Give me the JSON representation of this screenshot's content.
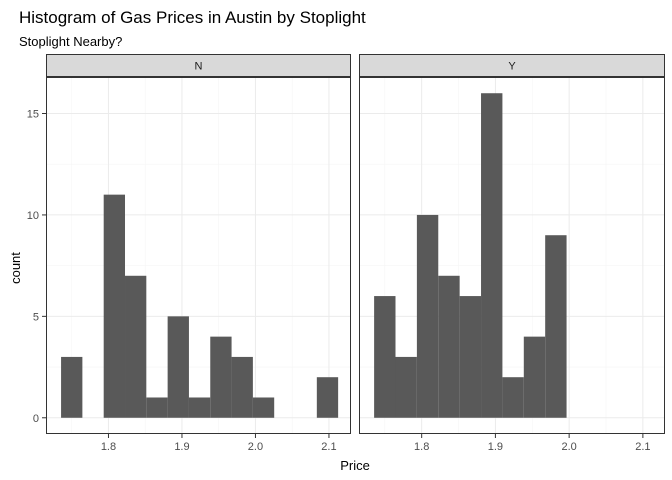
{
  "chart_data": {
    "type": "bar",
    "title": "Histogram of Gas Prices in Austin by Stoplight",
    "subtitle": "Stoplight Nearby?",
    "xlabel": "Price",
    "ylabel": "count",
    "xlim": [
      1.715,
      2.13
    ],
    "ylim": [
      -0.8,
      16.8
    ],
    "x_ticks": [
      1.8,
      1.9,
      2.0,
      2.1
    ],
    "y_ticks": [
      0,
      5,
      10,
      15
    ],
    "bin_width": 0.029,
    "grid": true,
    "facets": [
      {
        "name": "N",
        "bins": [
          {
            "x": 1.75,
            "count": 3
          },
          {
            "x": 1.808,
            "count": 11
          },
          {
            "x": 1.837,
            "count": 7
          },
          {
            "x": 1.866,
            "count": 1
          },
          {
            "x": 1.895,
            "count": 5
          },
          {
            "x": 1.924,
            "count": 1
          },
          {
            "x": 1.953,
            "count": 4
          },
          {
            "x": 1.982,
            "count": 3
          },
          {
            "x": 2.011,
            "count": 1
          },
          {
            "x": 2.098,
            "count": 2
          }
        ]
      },
      {
        "name": "Y",
        "bins": [
          {
            "x": 1.75,
            "count": 6
          },
          {
            "x": 1.779,
            "count": 3
          },
          {
            "x": 1.808,
            "count": 10
          },
          {
            "x": 1.837,
            "count": 7
          },
          {
            "x": 1.866,
            "count": 6
          },
          {
            "x": 1.895,
            "count": 16
          },
          {
            "x": 1.924,
            "count": 2
          },
          {
            "x": 1.953,
            "count": 4
          },
          {
            "x": 1.982,
            "count": 9
          }
        ]
      }
    ],
    "colors": {
      "bar": "#595959",
      "panel_border": "#333333",
      "strip_fill": "#d9d9d9",
      "grid_major": "#ebebeb",
      "grid_minor": "#f5f5f5"
    }
  }
}
